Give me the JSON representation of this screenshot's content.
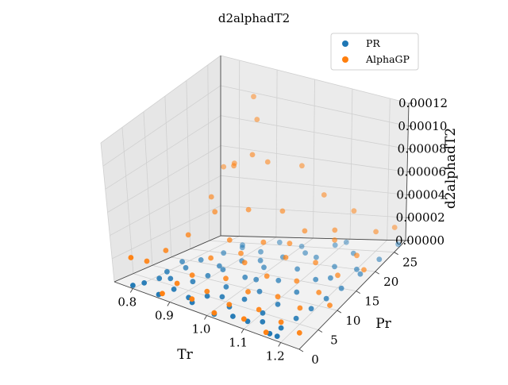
{
  "chart_data": {
    "type": "scatter",
    "projection": "3d",
    "title": "d2alphadT2",
    "xlabel": "Tr",
    "ylabel": "Pr",
    "zlabel": "d2alphadT2",
    "xlim": [
      0.75,
      1.25
    ],
    "ylim": [
      0,
      28
    ],
    "zlim": [
      0,
      0.00012
    ],
    "xticks": [
      "0.8",
      "0.9",
      "1.0",
      "1.1",
      "1.2"
    ],
    "xtick_values": [
      0.8,
      0.9,
      1.0,
      1.1,
      1.2
    ],
    "yticks": [
      "0",
      "5",
      "10",
      "15",
      "20",
      "25"
    ],
    "ytick_values": [
      0,
      5,
      10,
      15,
      20,
      25
    ],
    "zticks": [
      "0.00000",
      "0.00002",
      "0.00004",
      "0.00006",
      "0.00008",
      "0.00010",
      "0.00012"
    ],
    "ztick_values": [
      0,
      2e-05,
      4e-05,
      6e-05,
      8e-05,
      0.0001,
      0.00012
    ],
    "grid": true,
    "legend": "top-right",
    "series": [
      {
        "name": "PR",
        "color": "#1f77b4",
        "points": [
          [
            0.79,
            1,
            0
          ],
          [
            0.8,
            3,
            0
          ],
          [
            0.81,
            6,
            0
          ],
          [
            0.8,
            9,
            0
          ],
          [
            0.82,
            12,
            0
          ],
          [
            0.82,
            16,
            0
          ],
          [
            0.84,
            20,
            0
          ],
          [
            0.85,
            24,
            0
          ],
          [
            0.86,
            1,
            0
          ],
          [
            0.87,
            4,
            0
          ],
          [
            0.88,
            8,
            0
          ],
          [
            0.89,
            11,
            0
          ],
          [
            0.9,
            14,
            0
          ],
          [
            0.91,
            18,
            0
          ],
          [
            0.92,
            22,
            0
          ],
          [
            0.93,
            26,
            0
          ],
          [
            0.94,
            2,
            0
          ],
          [
            0.95,
            5,
            0
          ],
          [
            0.96,
            9,
            0
          ],
          [
            0.97,
            13,
            0
          ],
          [
            0.98,
            17,
            0
          ],
          [
            0.99,
            21,
            0
          ],
          [
            1.0,
            25,
            0
          ],
          [
            1.01,
            1,
            0
          ],
          [
            1.02,
            4,
            0
          ],
          [
            1.03,
            7,
            0
          ],
          [
            1.04,
            10,
            0
          ],
          [
            1.05,
            14,
            0
          ],
          [
            1.06,
            18,
            0
          ],
          [
            1.07,
            22,
            0
          ],
          [
            1.08,
            26,
            0
          ],
          [
            1.09,
            2,
            0
          ],
          [
            1.1,
            5,
            0
          ],
          [
            1.11,
            8,
            0
          ],
          [
            1.12,
            12,
            0
          ],
          [
            1.13,
            16,
            0
          ],
          [
            1.14,
            20,
            0
          ],
          [
            1.15,
            24,
            0
          ],
          [
            1.16,
            1,
            0
          ],
          [
            1.17,
            3,
            0
          ],
          [
            1.18,
            6,
            0
          ],
          [
            1.19,
            9,
            0
          ],
          [
            1.2,
            12,
            0
          ],
          [
            1.21,
            15,
            0
          ],
          [
            1.22,
            19,
            0
          ],
          [
            1.23,
            23,
            0
          ],
          [
            1.24,
            27,
            0
          ],
          [
            0.83,
            7,
            0
          ],
          [
            0.92,
            3,
            0
          ],
          [
            0.98,
            6,
            0
          ],
          [
            1.05,
            2,
            0
          ],
          [
            1.12,
            3,
            0
          ],
          [
            1.18,
            1,
            0
          ],
          [
            0.88,
            15,
            0
          ],
          [
            0.95,
            19,
            0
          ],
          [
            1.03,
            23,
            0
          ],
          [
            1.1,
            27,
            0
          ],
          [
            1.16,
            17,
            0
          ],
          [
            0.79,
            14,
            0
          ],
          [
            1.2,
            20,
            0
          ],
          [
            0.86,
            23,
            0
          ],
          [
            1.0,
            13,
            0
          ]
        ]
      },
      {
        "name": "AlphaGP",
        "color": "#ff7f0e",
        "points": [
          [
            0.78,
            2,
            2.1e-05
          ],
          [
            0.79,
            5,
            1.4e-05
          ],
          [
            0.8,
            9,
            1.7e-05
          ],
          [
            0.82,
            13,
            2.4e-05
          ],
          [
            0.84,
            18,
            3.4e-05
          ],
          [
            0.85,
            22,
            6.1e-05
          ],
          [
            0.86,
            26,
            0.000103
          ],
          [
            0.87,
            1,
            2e-06
          ],
          [
            0.88,
            4,
            6e-06
          ],
          [
            0.89,
            7,
            8e-06
          ],
          [
            0.9,
            11,
            1.5e-05
          ],
          [
            0.91,
            15,
            2.2e-05
          ],
          [
            0.92,
            19,
            3.8e-05
          ],
          [
            0.93,
            23,
            6.6e-05
          ],
          [
            0.94,
            2,
            3e-06
          ],
          [
            0.95,
            5,
            4e-06
          ],
          [
            0.96,
            9,
            7e-06
          ],
          [
            0.97,
            13,
            1.2e-05
          ],
          [
            0.98,
            17,
            2e-05
          ],
          [
            0.99,
            21,
            3.6e-05
          ],
          [
            1.0,
            25,
            6.2e-05
          ],
          [
            1.01,
            1,
            1e-06
          ],
          [
            1.02,
            4,
            2e-06
          ],
          [
            1.03,
            8,
            4e-06
          ],
          [
            1.04,
            12,
            8e-06
          ],
          [
            1.05,
            16,
            1.4e-05
          ],
          [
            1.06,
            20,
            2.6e-05
          ],
          [
            1.07,
            24,
            4.5e-05
          ],
          [
            1.08,
            2,
            1e-06
          ],
          [
            1.09,
            5,
            2e-06
          ],
          [
            1.1,
            9,
            3e-06
          ],
          [
            1.11,
            13,
            6e-06
          ],
          [
            1.12,
            17,
            1.1e-05
          ],
          [
            1.13,
            21,
            1.9e-05
          ],
          [
            1.14,
            25,
            3.2e-05
          ],
          [
            1.15,
            1,
            0
          ],
          [
            1.16,
            4,
            1e-06
          ],
          [
            1.17,
            8,
            2e-06
          ],
          [
            1.18,
            12,
            4e-06
          ],
          [
            1.19,
            16,
            7e-06
          ],
          [
            1.2,
            20,
            1.2e-05
          ],
          [
            1.21,
            24,
            2e-05
          ],
          [
            1.22,
            3,
            1e-06
          ],
          [
            1.23,
            10,
            3e-06
          ],
          [
            1.24,
            18,
            8e-06
          ],
          [
            1.24,
            26,
            1.8e-05
          ],
          [
            0.81,
            20,
            4e-05
          ],
          [
            0.83,
            24,
            5.8e-05
          ],
          [
            0.88,
            25,
            9e-05
          ],
          [
            0.9,
            22,
            7.2e-05
          ],
          [
            0.95,
            14,
            1.6e-05
          ],
          [
            1.04,
            18,
            2e-05
          ],
          [
            1.12,
            22,
            2.4e-05
          ],
          [
            0.79,
            25,
            5.2e-05
          ]
        ]
      }
    ]
  }
}
